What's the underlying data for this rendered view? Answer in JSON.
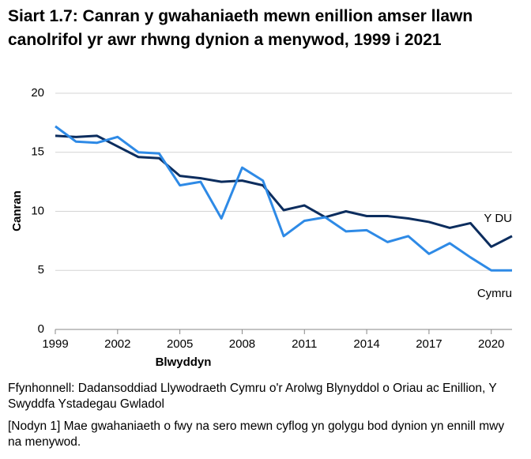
{
  "chart_data": {
    "type": "line",
    "title": "Siart 1.7: Canran y gwahaniaeth mewn enillion amser llawn canolrifol yr awr rhwng dynion a menywod, 1999 i 2021",
    "x_label": "Blwyddyn",
    "y_label": "Canran",
    "x": [
      1999,
      2000,
      2001,
      2002,
      2003,
      2004,
      2005,
      2006,
      2007,
      2008,
      2009,
      2010,
      2011,
      2012,
      2013,
      2014,
      2015,
      2016,
      2017,
      2018,
      2019,
      2020,
      2021
    ],
    "series": [
      {
        "name": "Y DU",
        "color": "#0c2d5e",
        "values": [
          16.4,
          16.3,
          16.4,
          15.5,
          14.6,
          14.5,
          13.0,
          12.8,
          12.5,
          12.6,
          12.2,
          10.1,
          10.5,
          9.5,
          10.0,
          9.6,
          9.6,
          9.4,
          9.1,
          8.6,
          9.0,
          7.0,
          7.9
        ]
      },
      {
        "name": "Cymru",
        "color": "#2e8ae6",
        "values": [
          17.2,
          15.9,
          15.8,
          16.3,
          15.0,
          14.9,
          12.2,
          12.5,
          9.4,
          13.7,
          12.6,
          7.9,
          9.2,
          9.5,
          8.3,
          8.4,
          7.4,
          7.9,
          6.4,
          7.3,
          6.1,
          5.0,
          5.0
        ]
      }
    ],
    "xlim": [
      1999,
      2021
    ],
    "xticks": [
      1999,
      2002,
      2005,
      2008,
      2011,
      2014,
      2017,
      2020
    ],
    "ylim": [
      0,
      20
    ],
    "yticks": [
      0,
      5,
      10,
      15,
      20
    ],
    "grid": true,
    "source": "Ffynhonnell: Dadansoddiad Llywodraeth Cymru o'r Arolwg Blynyddol o Oriau ac Enillion, Y Swyddfa Ystadegau Gwladol",
    "note": "[Nodyn 1] Mae gwahaniaeth o fwy na sero mewn cyflog yn golygu bod dynion yn ennill mwy na menywod."
  }
}
